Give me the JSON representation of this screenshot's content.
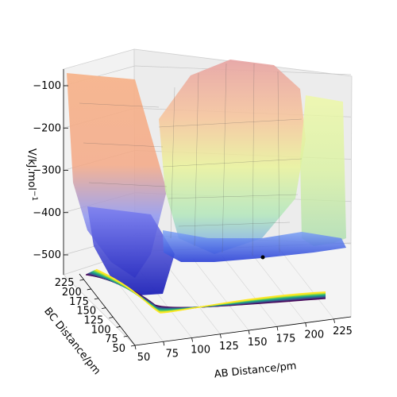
{
  "chart_data": {
    "type": "surface3d",
    "title": "",
    "xlabel": "AB Distance/pm",
    "ylabel": "BC Distance/pm",
    "zlabel": "V/kJ.mol",
    "zlabel_superscript": "−1",
    "xticks": [
      "50",
      "75",
      "100",
      "125",
      "150",
      "175",
      "200",
      "225"
    ],
    "yticks": [
      "50",
      "75",
      "100",
      "125",
      "150",
      "175",
      "200",
      "225"
    ],
    "zticks": [
      "−100",
      "−200",
      "−300",
      "−400",
      "−500"
    ],
    "xlim": [
      50,
      240
    ],
    "ylim": [
      50,
      240
    ],
    "zlim": [
      -560,
      -80
    ],
    "surface_colormap": "jet, semi-transparent",
    "contour_colormap": "viridis",
    "contour_floor": true,
    "grid": true,
    "marker": {
      "x": 160,
      "y": 240,
      "color": "#000000"
    },
    "surface_features": {
      "reactant_valley_min": -545,
      "product_valley_min": -530,
      "plateau_level": -120
    }
  }
}
